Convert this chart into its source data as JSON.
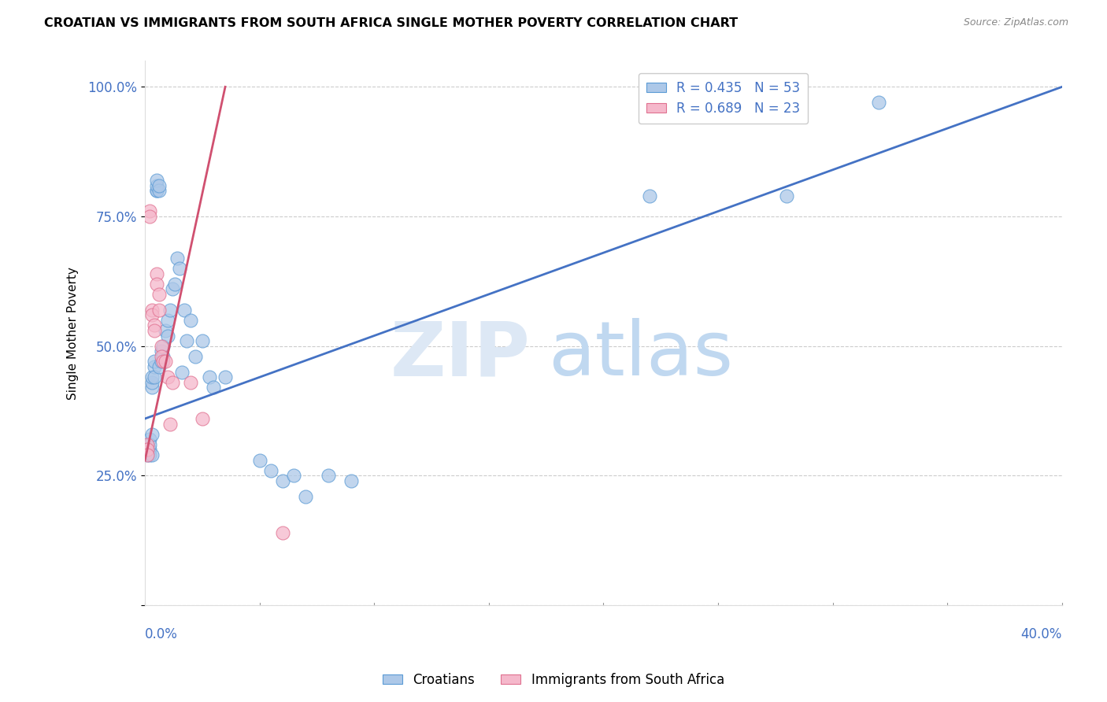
{
  "title": "CROATIAN VS IMMIGRANTS FROM SOUTH AFRICA SINGLE MOTHER POVERTY CORRELATION CHART",
  "source": "Source: ZipAtlas.com",
  "ylabel": "Single Mother Poverty",
  "yticks": [
    0.0,
    0.25,
    0.5,
    0.75,
    1.0
  ],
  "ytick_labels": [
    "",
    "25.0%",
    "50.0%",
    "75.0%",
    "100.0%"
  ],
  "xmin": 0.0,
  "xmax": 0.4,
  "ymin": 0.0,
  "ymax": 1.05,
  "r_blue": 0.435,
  "n_blue": 53,
  "r_pink": 0.689,
  "n_pink": 23,
  "legend_label_blue": "Croatians",
  "legend_label_pink": "Immigrants from South Africa",
  "blue_color": "#adc8e8",
  "pink_color": "#f5b8cb",
  "blue_edge_color": "#5b9bd5",
  "pink_edge_color": "#e07090",
  "blue_line_color": "#4472c4",
  "pink_line_color": "#d05070",
  "axis_label_color": "#4472c4",
  "watermark_zip_color": "#dde8f5",
  "watermark_atlas_color": "#c0d8f0",
  "blue_scatter_x": [
    0.001,
    0.001,
    0.001,
    0.002,
    0.002,
    0.002,
    0.002,
    0.003,
    0.003,
    0.003,
    0.003,
    0.003,
    0.004,
    0.004,
    0.004,
    0.005,
    0.005,
    0.005,
    0.005,
    0.006,
    0.006,
    0.006,
    0.007,
    0.007,
    0.008,
    0.008,
    0.009,
    0.01,
    0.01,
    0.011,
    0.012,
    0.013,
    0.014,
    0.015,
    0.016,
    0.017,
    0.018,
    0.02,
    0.022,
    0.025,
    0.028,
    0.03,
    0.035,
    0.05,
    0.055,
    0.06,
    0.065,
    0.07,
    0.08,
    0.09,
    0.22,
    0.28,
    0.32
  ],
  "blue_scatter_y": [
    0.31,
    0.3,
    0.29,
    0.32,
    0.3,
    0.29,
    0.31,
    0.42,
    0.43,
    0.44,
    0.33,
    0.29,
    0.46,
    0.44,
    0.47,
    0.8,
    0.8,
    0.81,
    0.82,
    0.8,
    0.46,
    0.81,
    0.49,
    0.47,
    0.5,
    0.48,
    0.53,
    0.55,
    0.52,
    0.57,
    0.61,
    0.62,
    0.67,
    0.65,
    0.45,
    0.57,
    0.51,
    0.55,
    0.48,
    0.51,
    0.44,
    0.42,
    0.44,
    0.28,
    0.26,
    0.24,
    0.25,
    0.21,
    0.25,
    0.24,
    0.79,
    0.79,
    0.97
  ],
  "pink_scatter_x": [
    0.001,
    0.001,
    0.001,
    0.002,
    0.002,
    0.003,
    0.003,
    0.004,
    0.004,
    0.005,
    0.005,
    0.006,
    0.006,
    0.007,
    0.007,
    0.008,
    0.009,
    0.01,
    0.011,
    0.012,
    0.02,
    0.025,
    0.06
  ],
  "pink_scatter_y": [
    0.31,
    0.3,
    0.29,
    0.76,
    0.75,
    0.57,
    0.56,
    0.54,
    0.53,
    0.64,
    0.62,
    0.6,
    0.57,
    0.5,
    0.48,
    0.47,
    0.47,
    0.44,
    0.35,
    0.43,
    0.43,
    0.36,
    0.14
  ],
  "blue_line_x0": 0.0,
  "blue_line_y0": 0.36,
  "blue_line_x1": 0.4,
  "blue_line_y1": 1.0,
  "pink_line_x0": 0.0,
  "pink_line_y0": 0.28,
  "pink_line_x1": 0.035,
  "pink_line_y1": 1.0
}
